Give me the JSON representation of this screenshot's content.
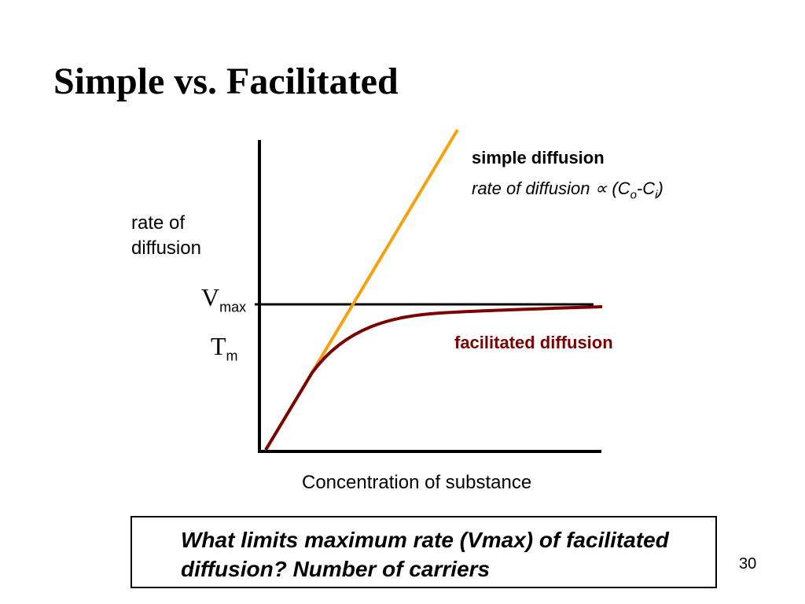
{
  "slide": {
    "title": "Simple vs. Facilitated",
    "page_number": "30",
    "question": "What limits maximum rate (Vmax) of facilitated diffusion? Number of carriers"
  },
  "diagram": {
    "y_axis_label": "rate of diffusion",
    "x_axis_label": "Concentration of substance",
    "vmax_label": "V",
    "vmax_sub": "max",
    "tm_label": "T",
    "tm_sub": "m",
    "simple_label": "simple diffusion",
    "simple_formula": {
      "prefix": "rate of diffusion ∝ (C",
      "sub_o": "o",
      "mid": "-C",
      "sub_i": "i",
      "suffix": ")"
    },
    "facilitated_label": "facilitated diffusion"
  },
  "colors": {
    "simple_line": "#f5a20f",
    "facilitated_line": "#7b0000",
    "axis": "#000000"
  }
}
